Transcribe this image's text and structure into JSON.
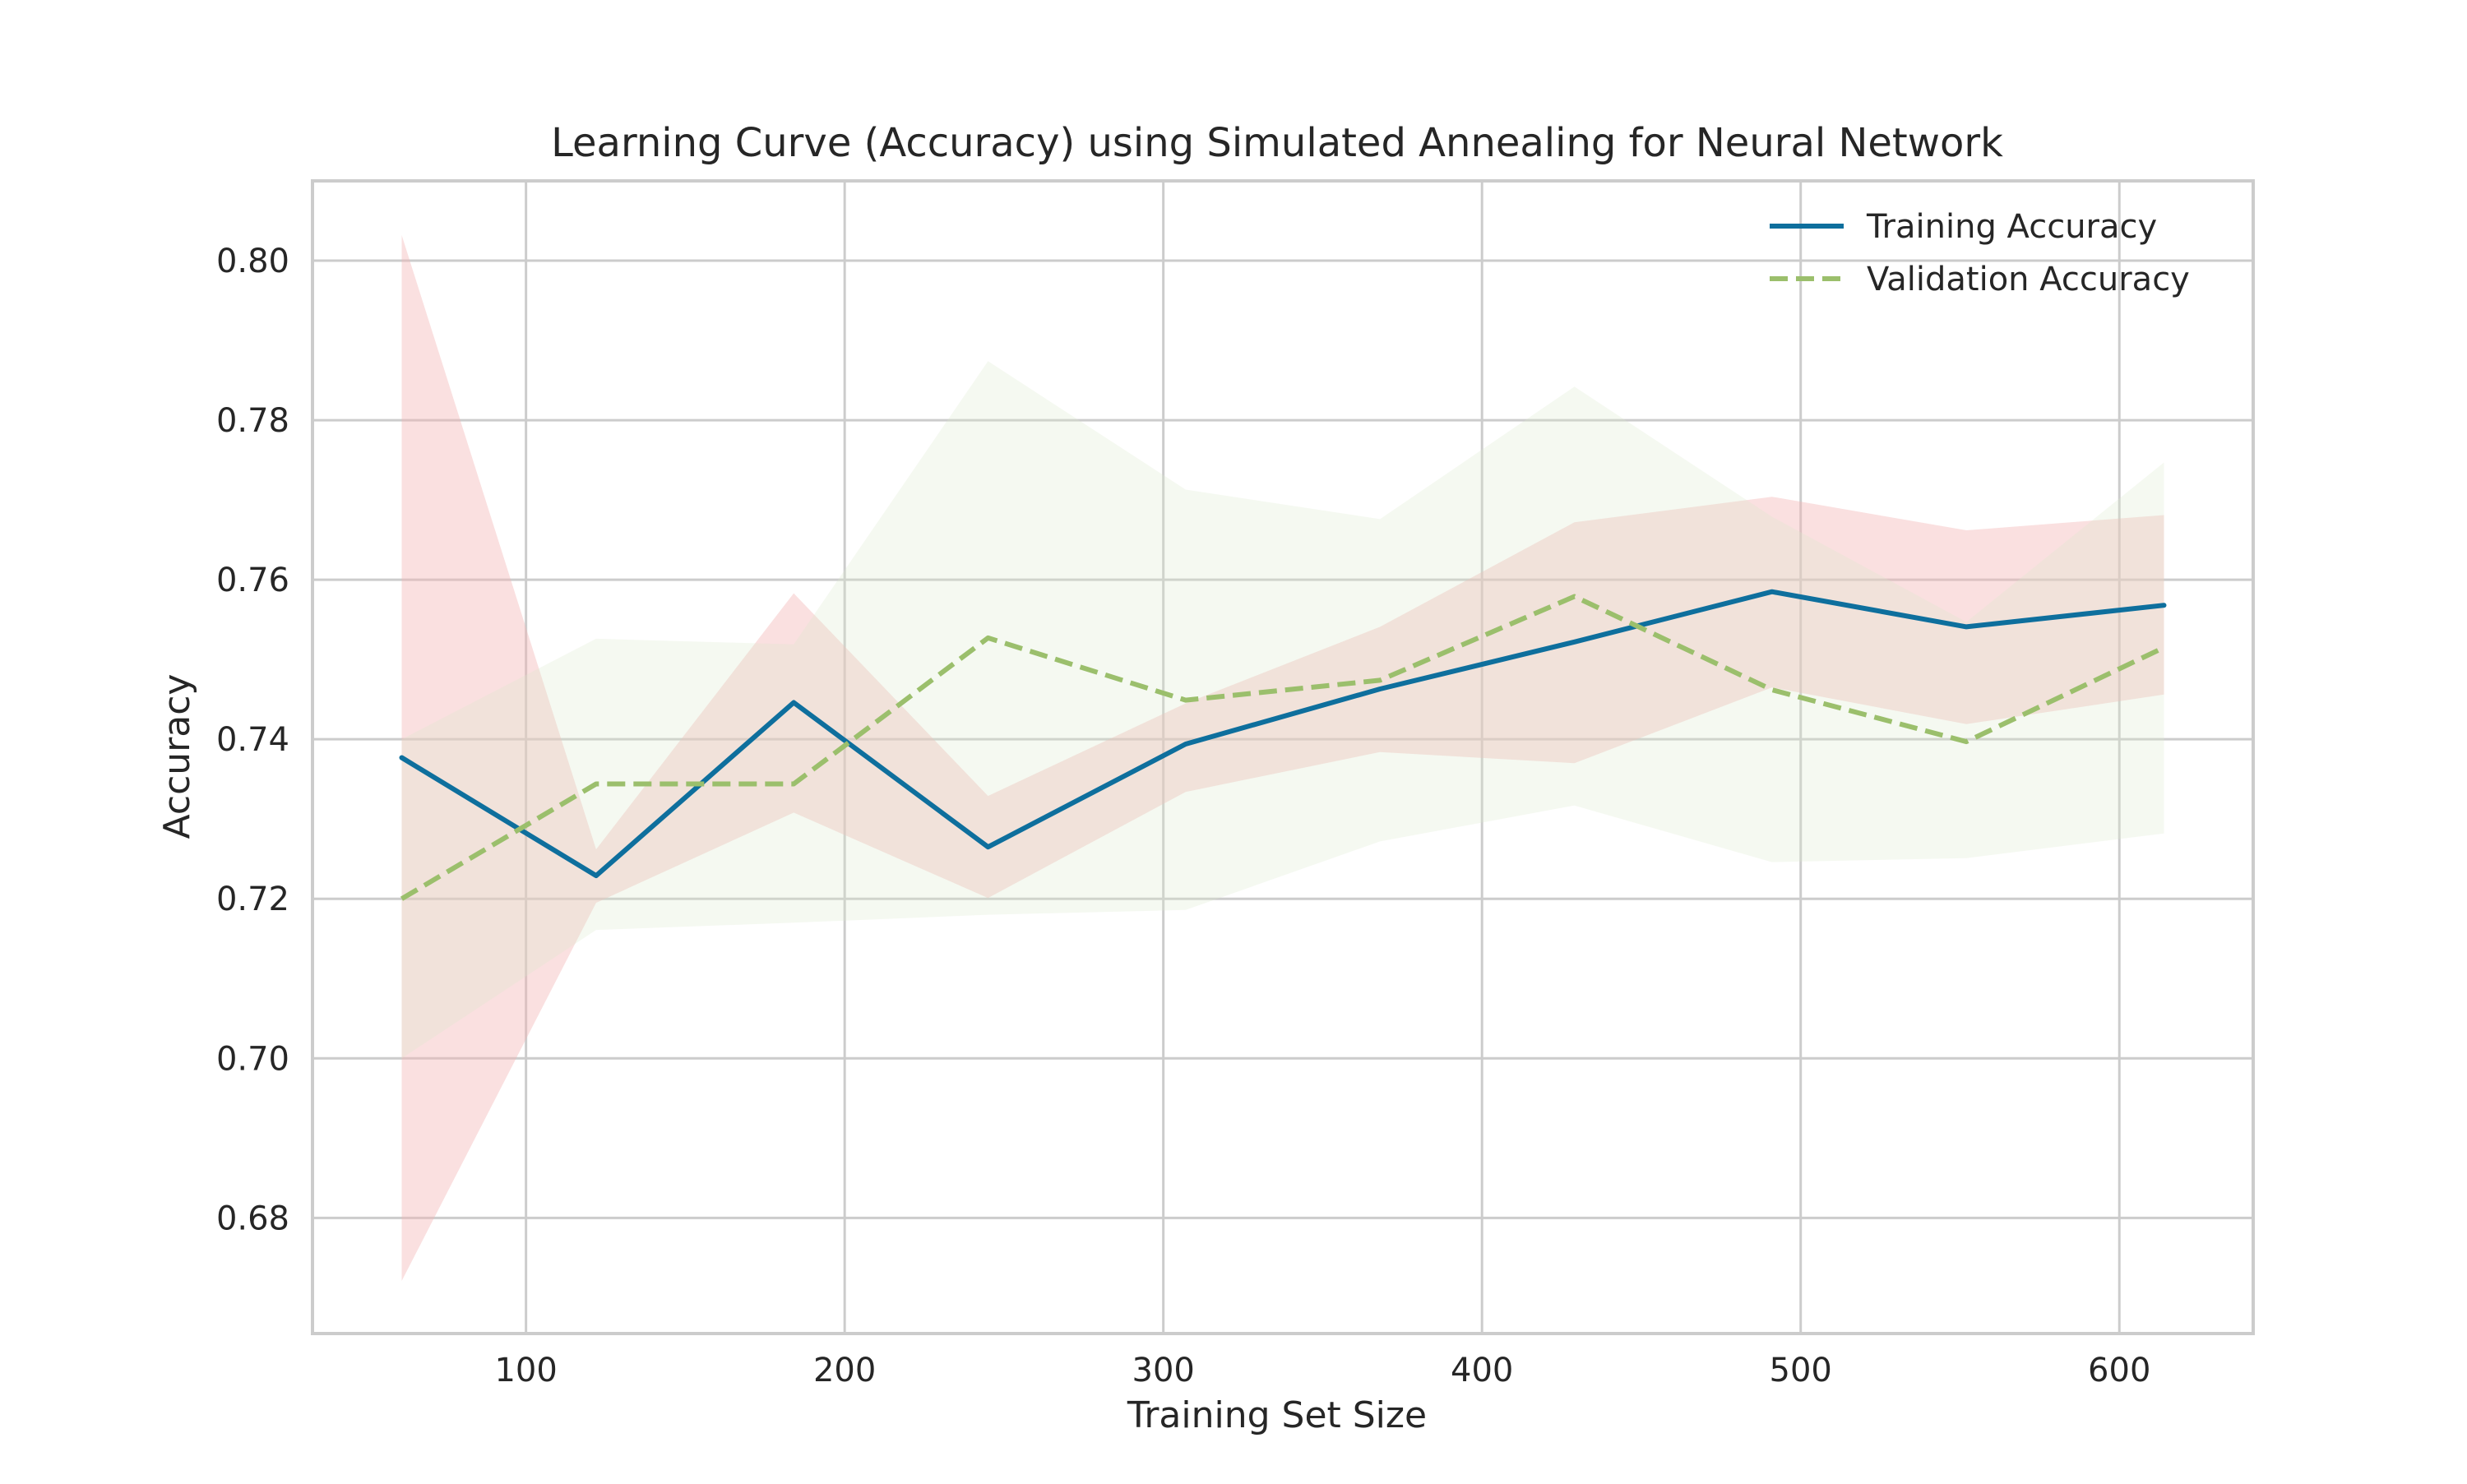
{
  "chart_data": {
    "type": "line",
    "title": "Learning Curve (Accuracy) using Simulated Annealing for Neural Network",
    "xlabel": "Training Set Size",
    "ylabel": "Accuracy",
    "xlim": [
      33,
      642
    ],
    "ylim": [
      0.6655,
      0.81
    ],
    "x_ticks": [
      100,
      200,
      300,
      400,
      500,
      600
    ],
    "y_ticks": [
      0.68,
      0.7,
      0.72,
      0.74,
      0.76,
      0.78,
      0.8
    ],
    "x_tick_labels": [
      "100",
      "200",
      "300",
      "400",
      "500",
      "600"
    ],
    "y_tick_labels": [
      "0.68",
      "0.70",
      "0.72",
      "0.74",
      "0.76",
      "0.78",
      "0.80"
    ],
    "grid": true,
    "legend_position": "top-right",
    "x": [
      61,
      122,
      184,
      245,
      307,
      368,
      429,
      491,
      552,
      614
    ],
    "series": [
      {
        "name": "Training Accuracy",
        "color": "#0e6f9d",
        "dash": "solid",
        "values": [
          0.7377,
          0.7229,
          0.7446,
          0.7265,
          0.7394,
          0.7463,
          0.7522,
          0.7585,
          0.7541,
          0.7568
        ],
        "band_upper": [
          0.8032,
          0.7262,
          0.7583,
          0.7329,
          0.7445,
          0.7541,
          0.7672,
          0.7704,
          0.7662,
          0.7681
        ],
        "band_lower": [
          0.6721,
          0.7195,
          0.7308,
          0.7201,
          0.7334,
          0.7384,
          0.737,
          0.7465,
          0.7419,
          0.7456
        ],
        "band_color": "#f4b6b6"
      },
      {
        "name": "Validation Accuracy",
        "color": "#9bbf6c",
        "dash": "dashed",
        "values": [
          0.72,
          0.7344,
          0.7344,
          0.7527,
          0.7449,
          0.7474,
          0.7579,
          0.7462,
          0.7397,
          0.7515
        ],
        "band_upper": [
          0.74,
          0.7526,
          0.7519,
          0.7874,
          0.7713,
          0.7676,
          0.7842,
          0.7679,
          0.7547,
          0.7747
        ],
        "band_lower": [
          0.7,
          0.7161,
          0.717,
          0.718,
          0.7186,
          0.7272,
          0.7317,
          0.7246,
          0.7251,
          0.7282
        ],
        "band_color": "#dbe8cc"
      }
    ]
  }
}
